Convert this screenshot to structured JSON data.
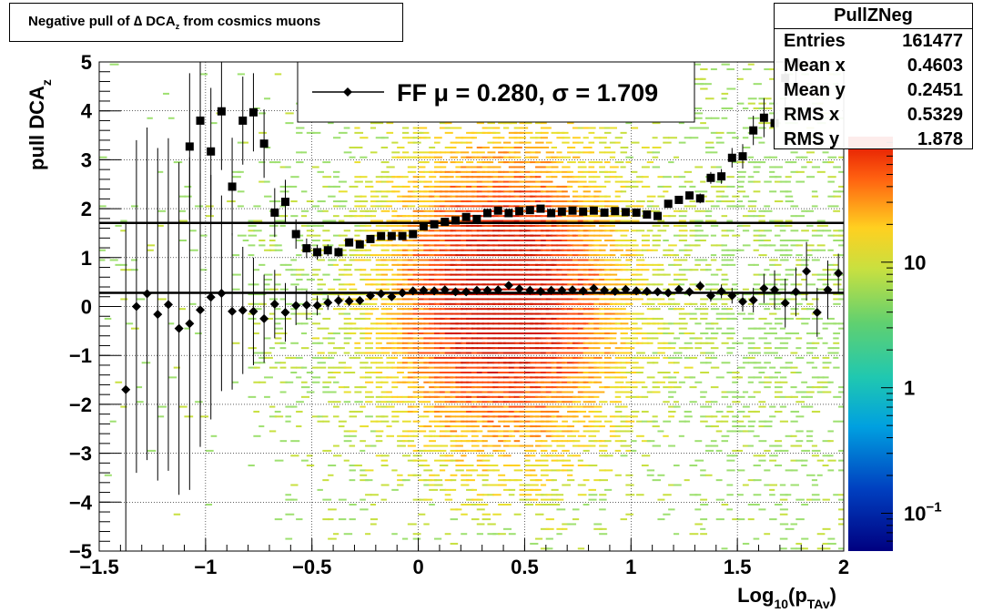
{
  "title": {
    "prefix": "Negative pull of ∆ DCA",
    "sub": "z",
    "suffix": " from cosmics muons"
  },
  "stats": {
    "name": "PullZNeg",
    "rows": [
      {
        "key": "Entries",
        "value": "161477"
      },
      {
        "key": "Mean x",
        "value": "0.4603"
      },
      {
        "key": "Mean y",
        "value": "0.2451"
      },
      {
        "key": "RMS x",
        "value": "0.5329"
      },
      {
        "key": "RMS y",
        "value": "1.878"
      }
    ]
  },
  "legend": {
    "label": "FF μ =  0.280, σ =   1.709"
  },
  "chart_data": {
    "type": "heatmap",
    "title": "Negative pull of ∆ DCA_z from cosmics muons",
    "xlabel": "Log10(pTAv)",
    "ylabel": "pull DCAz",
    "xlim": [
      -1.5,
      2
    ],
    "ylim": [
      -5,
      5
    ],
    "x_ticks": [
      "−1.5",
      "−1",
      "−0.5",
      "0",
      "0.5",
      "1",
      "1.5",
      "2"
    ],
    "y_ticks": [
      "−5",
      "−4",
      "−3",
      "−2",
      "−1",
      "0",
      "1",
      "2",
      "3",
      "4",
      "5"
    ],
    "colorbar": {
      "scale": "log",
      "range": [
        0.05,
        100
      ],
      "tick_labels": [
        {
          "base": "10",
          "exp": "−1",
          "value": 0.1
        },
        {
          "base": "1",
          "exp": "",
          "value": 1
        },
        {
          "base": "10",
          "exp": "",
          "value": 10
        }
      ]
    },
    "grid": true,
    "fit_lines": [
      {
        "name": "mean",
        "y": 0.28
      },
      {
        "name": "sigma",
        "y": 1.709
      }
    ],
    "series": [
      {
        "name": "FF μ",
        "marker": "diamond",
        "x": [
          -1.375,
          -1.325,
          -1.275,
          -1.225,
          -1.175,
          -1.125,
          -1.075,
          -1.025,
          -0.975,
          -0.925,
          -0.875,
          -0.825,
          -0.775,
          -0.725,
          -0.675,
          -0.625,
          -0.575,
          -0.525,
          -0.475,
          -0.425,
          -0.375,
          -0.325,
          -0.275,
          -0.225,
          -0.175,
          -0.125,
          -0.075,
          -0.025,
          0.025,
          0.075,
          0.125,
          0.175,
          0.225,
          0.275,
          0.325,
          0.375,
          0.425,
          0.475,
          0.525,
          0.575,
          0.625,
          0.675,
          0.725,
          0.775,
          0.825,
          0.875,
          0.925,
          0.975,
          1.025,
          1.075,
          1.125,
          1.175,
          1.225,
          1.275,
          1.325,
          1.375,
          1.425,
          1.475,
          1.525,
          1.575,
          1.625,
          1.675,
          1.725,
          1.775,
          1.825,
          1.875,
          1.925,
          1.975
        ],
        "y": [
          -1.7,
          0.0,
          0.26,
          -0.16,
          0.04,
          -0.45,
          -0.35,
          -0.07,
          0.19,
          0.27,
          -0.1,
          -0.08,
          -0.1,
          -0.25,
          0.05,
          -0.12,
          0.02,
          0.03,
          0.02,
          0.08,
          0.12,
          0.11,
          0.12,
          0.22,
          0.26,
          0.2,
          0.28,
          0.32,
          0.33,
          0.32,
          0.34,
          0.3,
          0.3,
          0.33,
          0.33,
          0.34,
          0.43,
          0.36,
          0.33,
          0.31,
          0.33,
          0.33,
          0.34,
          0.32,
          0.37,
          0.33,
          0.31,
          0.35,
          0.32,
          0.31,
          0.3,
          0.28,
          0.35,
          0.3,
          0.42,
          0.22,
          0.31,
          0.22,
          0.1,
          0.13,
          0.37,
          0.34,
          0.07,
          0.3,
          0.72,
          -0.12,
          0.34,
          0.68
        ],
        "yerr": [
          3.4,
          3.4,
          3.4,
          3.4,
          3.4,
          3.4,
          3.4,
          2.8,
          2.5,
          2.0,
          1.6,
          1.3,
          1.1,
          0.9,
          0.7,
          0.6,
          0.4,
          0.3,
          0.2,
          0.15,
          0.12,
          0.1,
          0.08,
          0.07,
          0.06,
          0.05,
          0.05,
          0.05,
          0.05,
          0.05,
          0.05,
          0.05,
          0.05,
          0.05,
          0.05,
          0.05,
          0.05,
          0.05,
          0.05,
          0.05,
          0.05,
          0.05,
          0.05,
          0.05,
          0.05,
          0.05,
          0.05,
          0.05,
          0.05,
          0.05,
          0.06,
          0.07,
          0.08,
          0.09,
          0.1,
          0.12,
          0.14,
          0.16,
          0.2,
          0.25,
          0.3,
          0.4,
          0.5,
          0.5,
          0.6,
          0.5,
          0.6,
          0.4
        ]
      },
      {
        "name": "FF σ",
        "marker": "square",
        "x": [
          -1.075,
          -1.025,
          -0.975,
          -0.925,
          -0.875,
          -0.825,
          -0.775,
          -0.725,
          -0.675,
          -0.625,
          -0.575,
          -0.525,
          -0.475,
          -0.425,
          -0.375,
          -0.325,
          -0.275,
          -0.225,
          -0.175,
          -0.125,
          -0.075,
          -0.025,
          0.025,
          0.075,
          0.125,
          0.175,
          0.225,
          0.275,
          0.325,
          0.375,
          0.425,
          0.475,
          0.525,
          0.575,
          0.625,
          0.675,
          0.725,
          0.775,
          0.825,
          0.875,
          0.925,
          0.975,
          1.025,
          1.075,
          1.125,
          1.175,
          1.225,
          1.275,
          1.325,
          1.375,
          1.425,
          1.475,
          1.525,
          1.575,
          1.625,
          1.675,
          1.725,
          1.775
        ],
        "y": [
          3.27,
          3.8,
          3.17,
          3.99,
          2.45,
          3.8,
          3.97,
          3.33,
          1.92,
          2.14,
          1.48,
          1.19,
          1.11,
          1.15,
          1.11,
          1.31,
          1.27,
          1.38,
          1.44,
          1.44,
          1.44,
          1.48,
          1.64,
          1.68,
          1.73,
          1.76,
          1.83,
          1.79,
          1.91,
          1.96,
          1.91,
          1.95,
          1.97,
          2.0,
          1.91,
          1.94,
          1.96,
          1.94,
          1.96,
          1.92,
          1.95,
          1.93,
          1.92,
          1.88,
          1.85,
          2.1,
          2.18,
          2.27,
          2.21,
          2.63,
          2.66,
          3.04,
          3.07,
          3.6,
          3.86,
          3.75,
          4.67,
          4.98
        ],
        "yerr": [
          1.5,
          1.4,
          1.3,
          1.2,
          1.0,
          0.9,
          0.8,
          0.7,
          0.5,
          0.45,
          0.3,
          0.2,
          0.15,
          0.12,
          0.1,
          0.08,
          0.07,
          0.06,
          0.05,
          0.05,
          0.05,
          0.05,
          0.05,
          0.05,
          0.05,
          0.05,
          0.05,
          0.05,
          0.05,
          0.05,
          0.05,
          0.05,
          0.05,
          0.05,
          0.05,
          0.05,
          0.05,
          0.05,
          0.05,
          0.05,
          0.05,
          0.05,
          0.05,
          0.05,
          0.05,
          0.06,
          0.07,
          0.08,
          0.1,
          0.12,
          0.15,
          0.2,
          0.25,
          0.3,
          0.4,
          0.5,
          0.6,
          0.6
        ]
      }
    ]
  }
}
